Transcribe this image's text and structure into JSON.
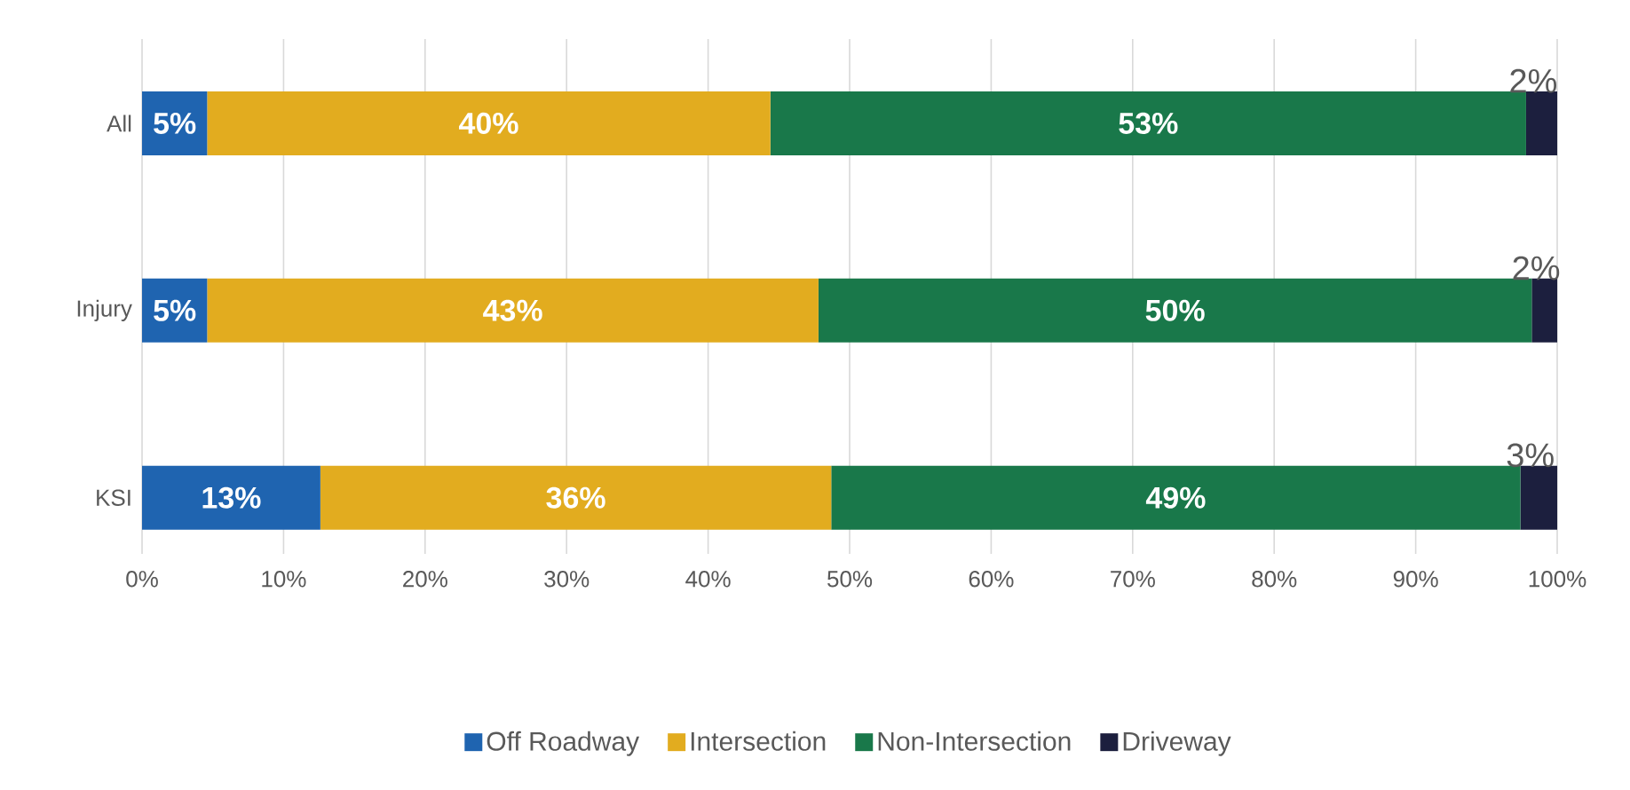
{
  "chart_data": {
    "type": "bar",
    "orientation": "horizontal",
    "stacked": true,
    "categories": [
      "All",
      "Injury",
      "KSI"
    ],
    "series": [
      {
        "name": "Off Roadway",
        "color": "#1f64b0",
        "values": [
          4.6,
          4.6,
          12.6
        ],
        "value_labels": [
          "5%",
          "5%",
          "13%"
        ]
      },
      {
        "name": "Intersection",
        "color": "#e2ac1f",
        "values": [
          39.8,
          43.2,
          36.1
        ],
        "value_labels": [
          "40%",
          "43%",
          "36%"
        ]
      },
      {
        "name": "Non-Intersection",
        "color": "#19784a",
        "values": [
          53.4,
          50.4,
          48.7
        ],
        "value_labels": [
          "53%",
          "50%",
          "49%"
        ]
      },
      {
        "name": "Driveway",
        "color": "#1c1f3e",
        "values": [
          2.2,
          1.8,
          2.6
        ],
        "value_labels": [
          "2%",
          "2%",
          "3%"
        ]
      }
    ],
    "xlim": [
      0,
      100
    ],
    "xticks": [
      {
        "value": 0,
        "label": "0%"
      },
      {
        "value": 10,
        "label": "10%"
      },
      {
        "value": 20,
        "label": "20%"
      },
      {
        "value": 30,
        "label": "30%"
      },
      {
        "value": 40,
        "label": "40%"
      },
      {
        "value": 50,
        "label": "50%"
      },
      {
        "value": 60,
        "label": "60%"
      },
      {
        "value": 70,
        "label": "70%"
      },
      {
        "value": 80,
        "label": "80%"
      },
      {
        "value": 90,
        "label": "90%"
      },
      {
        "value": 100,
        "label": "100%"
      }
    ],
    "grid": "x",
    "legend": "bottom"
  }
}
